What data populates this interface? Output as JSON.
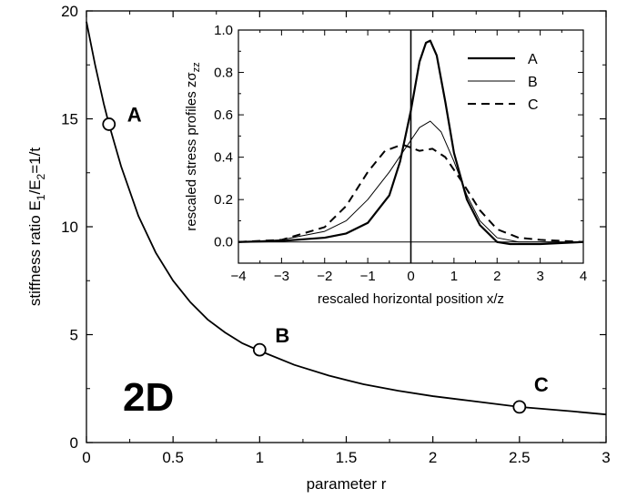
{
  "chart_data": [
    {
      "type": "line",
      "xlabel": "parameter r",
      "ylabel": "stiffness ratio E",
      "ylabel_sub1": "1",
      "ylabel_mid": "/E",
      "ylabel_sub2": "2",
      "ylabel_tail": "=1/t",
      "xlim": [
        0,
        3
      ],
      "ylim": [
        0,
        20
      ],
      "x_ticks": [
        "0",
        "0.5",
        "1",
        "1.5",
        "2",
        "2.5",
        "3"
      ],
      "y_ticks": [
        "0",
        "5",
        "10",
        "15",
        "20"
      ],
      "series": [
        {
          "x": [
            0,
            0.05,
            0.1,
            0.13,
            0.2,
            0.3,
            0.4,
            0.5,
            0.6,
            0.7,
            0.8,
            0.9,
            1.0,
            1.2,
            1.4,
            1.6,
            1.8,
            2.0,
            2.2,
            2.5,
            2.8,
            3.0
          ],
          "y": [
            19.5,
            17.5,
            15.7,
            14.75,
            12.8,
            10.5,
            8.8,
            7.5,
            6.5,
            5.7,
            5.1,
            4.6,
            4.25,
            3.6,
            3.1,
            2.7,
            2.4,
            2.15,
            1.95,
            1.65,
            1.45,
            1.3
          ]
        }
      ],
      "points": [
        {
          "label": "A",
          "x": 0.13,
          "y": 14.75
        },
        {
          "label": "B",
          "x": 1.0,
          "y": 4.3
        },
        {
          "label": "C",
          "x": 2.5,
          "y": 1.65
        }
      ],
      "annotation": "2D"
    },
    {
      "type": "line",
      "xlabel": "rescaled horizontal position x/z",
      "ylabel": "rescaled stress profiles z",
      "ylabel_sigma": "σ",
      "ylabel_sub": "zz",
      "xlim": [
        -4,
        4
      ],
      "ylim": [
        -0.1,
        1.0
      ],
      "x_ticks": [
        "−4",
        "−3",
        "−2",
        "−1",
        "0",
        "1",
        "2",
        "3",
        "4"
      ],
      "y_ticks": [
        "0.0",
        "0.2",
        "0.4",
        "0.6",
        "0.8",
        "1.0"
      ],
      "legend": "top-right",
      "series": [
        {
          "name": "A",
          "x": [
            -4,
            -3,
            -2,
            -1.5,
            -1,
            -0.5,
            -0.25,
            0,
            0.2,
            0.35,
            0.45,
            0.6,
            0.8,
            1.0,
            1.3,
            1.6,
            2.0,
            2.3,
            2.6,
            3.0,
            3.5,
            4.0
          ],
          "y": [
            0.0,
            0.005,
            0.02,
            0.04,
            0.09,
            0.22,
            0.38,
            0.62,
            0.85,
            0.94,
            0.95,
            0.88,
            0.66,
            0.42,
            0.2,
            0.08,
            0.0,
            -0.01,
            -0.01,
            -0.01,
            -0.005,
            0.0
          ]
        },
        {
          "name": "B",
          "x": [
            -4,
            -3,
            -2,
            -1.5,
            -1,
            -0.5,
            0,
            0.2,
            0.45,
            0.7,
            1.0,
            1.3,
            1.6,
            2.0,
            2.5,
            3.0,
            3.5,
            4.0
          ],
          "y": [
            0.0,
            0.01,
            0.05,
            0.1,
            0.2,
            0.33,
            0.48,
            0.54,
            0.57,
            0.52,
            0.38,
            0.22,
            0.1,
            0.02,
            0.0,
            0.0,
            0.0,
            0.0
          ]
        },
        {
          "name": "C",
          "x": [
            -4,
            -3,
            -2,
            -1.5,
            -1,
            -0.6,
            -0.2,
            0.2,
            0.5,
            0.8,
            1.2,
            1.6,
            2.0,
            2.5,
            3.0,
            3.5,
            4.0
          ],
          "y": [
            0.0,
            0.01,
            0.07,
            0.17,
            0.33,
            0.43,
            0.46,
            0.43,
            0.44,
            0.4,
            0.28,
            0.15,
            0.06,
            0.02,
            0.01,
            0.005,
            0.0
          ]
        }
      ]
    }
  ]
}
